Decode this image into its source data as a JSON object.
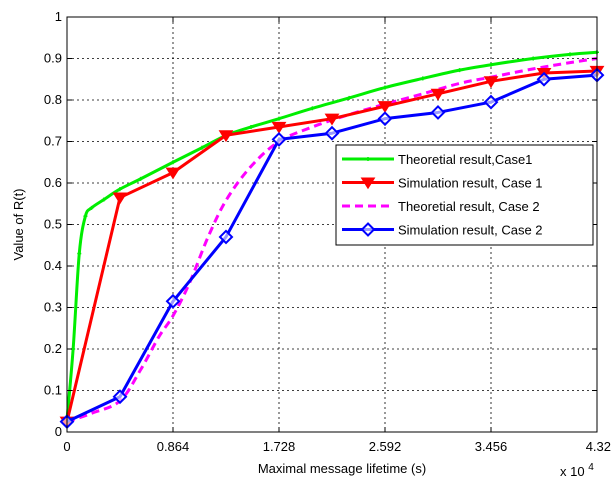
{
  "chart_data": {
    "type": "line",
    "title": "",
    "xlabel": "Maximal message lifetime (s)",
    "ylabel": "Value of R(t)",
    "x_multiplier_label": "x 10",
    "x_multiplier_exponent": "4",
    "xlim": [
      0,
      4.32
    ],
    "ylim": [
      0,
      1
    ],
    "x_ticks": [
      0,
      0.864,
      1.728,
      2.592,
      3.456,
      4.32
    ],
    "x_tick_labels": [
      "0",
      "0.864",
      "1.728",
      "2.592",
      "3.456",
      "4.32"
    ],
    "y_ticks": [
      0,
      0.1,
      0.2,
      0.3,
      0.4,
      0.5,
      0.6,
      0.7,
      0.8,
      0.9,
      1
    ],
    "y_tick_labels": [
      "0",
      "0.1",
      "0.2",
      "0.3",
      "0.4",
      "0.5",
      "0.6",
      "0.7",
      "0.8",
      "0.9",
      "1"
    ],
    "grid": true,
    "legend_position": "center-right",
    "series": [
      {
        "name": "Theoretial result,Case1",
        "color": "#00ee00",
        "style": "solid",
        "marker": "plus",
        "x": [
          0,
          0.05,
          0.1,
          0.15,
          0.2,
          0.3,
          0.43,
          0.6,
          0.864,
          1.1,
          1.3,
          1.5,
          1.728,
          2.0,
          2.3,
          2.592,
          2.9,
          3.2,
          3.456,
          3.8,
          4.1,
          4.32
        ],
        "y": [
          0.03,
          0.2,
          0.43,
          0.52,
          0.54,
          0.56,
          0.585,
          0.61,
          0.65,
          0.685,
          0.715,
          0.735,
          0.755,
          0.78,
          0.805,
          0.83,
          0.852,
          0.872,
          0.885,
          0.9,
          0.91,
          0.915
        ]
      },
      {
        "name": "Simulation result, Case 1",
        "color": "#ff0000",
        "style": "solid",
        "marker": "triangle-down",
        "x": [
          0,
          0.432,
          0.864,
          1.296,
          1.728,
          2.16,
          2.592,
          3.024,
          3.456,
          3.888,
          4.32
        ],
        "y": [
          0.025,
          0.565,
          0.625,
          0.715,
          0.735,
          0.755,
          0.785,
          0.815,
          0.845,
          0.865,
          0.87
        ]
      },
      {
        "name": "Theoretial result, Case 2",
        "color": "#ff00ff",
        "style": "dashed",
        "marker": "none",
        "x": [
          0,
          0.2,
          0.432,
          0.6,
          0.75,
          0.864,
          1.0,
          1.15,
          1.3,
          1.5,
          1.728,
          2.0,
          2.3,
          2.592,
          2.9,
          3.2,
          3.456,
          3.8,
          4.1,
          4.32
        ],
        "y": [
          0.025,
          0.045,
          0.075,
          0.15,
          0.23,
          0.28,
          0.36,
          0.47,
          0.56,
          0.64,
          0.7,
          0.735,
          0.765,
          0.79,
          0.815,
          0.84,
          0.855,
          0.875,
          0.89,
          0.9
        ]
      },
      {
        "name": "Simulation result, Case 2",
        "color": "#0000ff",
        "style": "solid",
        "marker": "diamond",
        "x": [
          0,
          0.432,
          0.864,
          1.296,
          1.728,
          2.16,
          2.592,
          3.024,
          3.456,
          3.888,
          4.32
        ],
        "y": [
          0.025,
          0.085,
          0.315,
          0.47,
          0.705,
          0.72,
          0.755,
          0.77,
          0.795,
          0.85,
          0.86
        ]
      }
    ]
  }
}
